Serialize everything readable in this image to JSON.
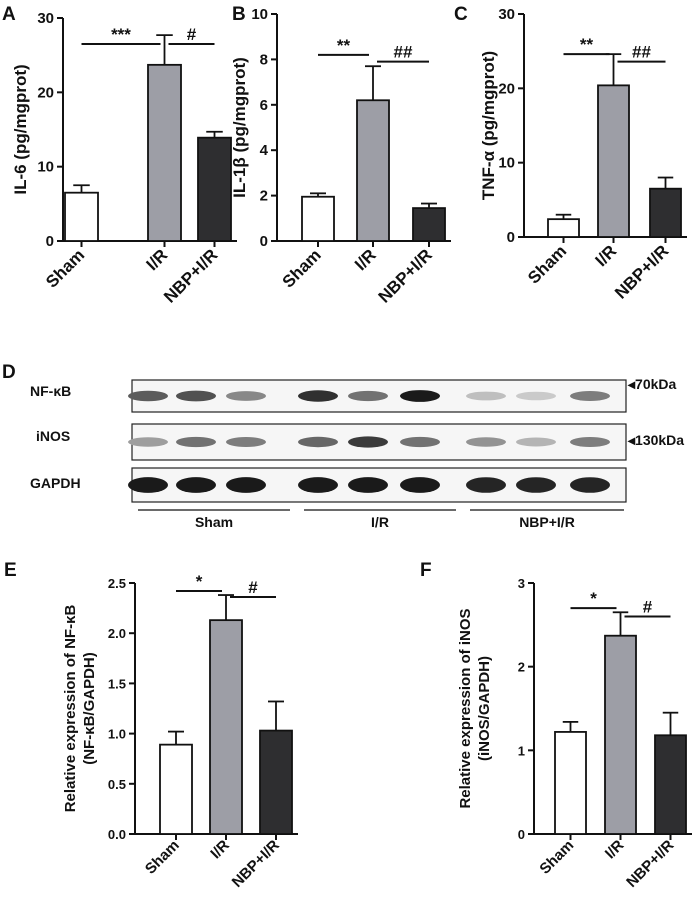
{
  "panel_letters": {
    "a": "A",
    "b": "B",
    "c": "C",
    "d": "D",
    "e": "E",
    "f": "F"
  },
  "colors": {
    "sham": "#ffffff",
    "ir": "#9d9ea6",
    "nbp_ir": "#2e2e30",
    "axis": "#111111"
  },
  "chart_data": [
    {
      "id": "A",
      "type": "bar",
      "categories": [
        "Sham",
        "I/R",
        "NBP+I/R"
      ],
      "values": [
        6.5,
        23.7,
        13.9
      ],
      "errors": [
        1.0,
        4.0,
        0.8
      ],
      "ylabel": "IL-6 (pg/mgprot)",
      "ylim": [
        0,
        30
      ],
      "yticks": [
        "0",
        "10",
        "20",
        "30"
      ],
      "significance": [
        {
          "from": 0,
          "to": 1,
          "label": "***",
          "y": 26.5
        },
        {
          "from": 1,
          "to": 2,
          "label": "#",
          "y": 26.5
        }
      ]
    },
    {
      "id": "B",
      "type": "bar",
      "categories": [
        "Sham",
        "I/R",
        "NBP+I/R"
      ],
      "values": [
        1.95,
        6.2,
        1.45
      ],
      "errors": [
        0.15,
        1.5,
        0.2
      ],
      "ylabel": "IL-1β (pg/mgprot)",
      "ylim": [
        0,
        10
      ],
      "yticks": [
        "0",
        "2",
        "4",
        "6",
        "8",
        "10"
      ],
      "significance": [
        {
          "from": 0,
          "to": 1,
          "label": "**",
          "y": 8.2
        },
        {
          "from": 1,
          "to": 2,
          "label": "##",
          "y": 7.9
        }
      ]
    },
    {
      "id": "C",
      "type": "bar",
      "categories": [
        "Sham",
        "I/R",
        "NBP+I/R"
      ],
      "values": [
        2.4,
        20.4,
        6.5
      ],
      "errors": [
        0.6,
        4.2,
        1.5
      ],
      "ylabel": "TNF-α (pg/mgprot)",
      "ylim": [
        0,
        30
      ],
      "yticks": [
        "0",
        "10",
        "20",
        "30"
      ],
      "significance": [
        {
          "from": 0,
          "to": 1,
          "label": "**",
          "y": 24.6
        },
        {
          "from": 1,
          "to": 2,
          "label": "##",
          "y": 23.6
        }
      ]
    },
    {
      "id": "E",
      "type": "bar",
      "categories": [
        "Sham",
        "I/R",
        "NBP+I/R"
      ],
      "values": [
        0.89,
        2.13,
        1.03
      ],
      "errors": [
        0.13,
        0.25,
        0.29
      ],
      "ylabel": [
        "Relative expression of NF-κB",
        "(NF-κB/GAPDH)"
      ],
      "ylim": [
        0,
        2.5
      ],
      "yticks": [
        "0.0",
        "0.5",
        "1.0",
        "1.5",
        "2.0",
        "2.5"
      ],
      "significance": [
        {
          "from": 0,
          "to": 1,
          "label": "*",
          "y": 2.42
        },
        {
          "from": 1,
          "to": 2,
          "label": "#",
          "y": 2.36
        }
      ]
    },
    {
      "id": "F",
      "type": "bar",
      "categories": [
        "Sham",
        "I/R",
        "NBP+I/R"
      ],
      "values": [
        1.22,
        2.37,
        1.18
      ],
      "errors": [
        0.12,
        0.28,
        0.27
      ],
      "ylabel": [
        "Relative expression of iNOS",
        "(iNOS/GAPDH)"
      ],
      "ylim": [
        0,
        3
      ],
      "yticks": [
        "0",
        "1",
        "2",
        "3"
      ],
      "significance": [
        {
          "from": 0,
          "to": 1,
          "label": "*",
          "y": 2.7
        },
        {
          "from": 1,
          "to": 2,
          "label": "#",
          "y": 2.6
        }
      ]
    }
  ],
  "western_blot": {
    "rows": [
      {
        "label": "NF-κB",
        "marker": "◂70kDa",
        "intensities": [
          0.65,
          0.7,
          0.45,
          0.85,
          0.55,
          0.95,
          0.2,
          0.15,
          0.5
        ]
      },
      {
        "label": "iNOS",
        "marker": "◂130kDa",
        "intensities": [
          0.35,
          0.55,
          0.5,
          0.6,
          0.8,
          0.55,
          0.4,
          0.25,
          0.5
        ]
      },
      {
        "label": "GAPDH",
        "marker": "",
        "intensities": [
          0.95,
          0.95,
          0.95,
          0.95,
          0.95,
          0.95,
          0.9,
          0.9,
          0.9
        ]
      }
    ],
    "groups": [
      "Sham",
      "I/R",
      "NBP+I/R"
    ]
  }
}
